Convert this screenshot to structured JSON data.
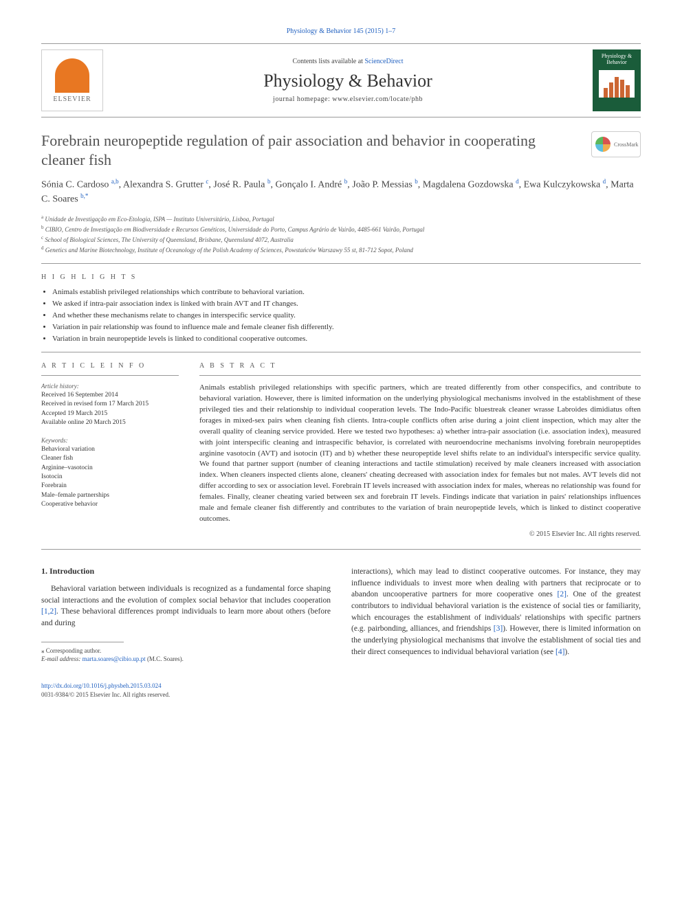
{
  "citation": {
    "journal_short": "Physiology & Behavior",
    "volume_pages": "145 (2015) 1–7"
  },
  "header": {
    "contents_prefix": "Contents lists available at ",
    "contents_link": "ScienceDirect",
    "journal_title": "Physiology & Behavior",
    "homepage_prefix": "journal homepage: ",
    "homepage": "www.elsevier.com/locate/phb",
    "publisher": "ELSEVIER",
    "cover_title": "Physiology & Behavior",
    "cover_bar_heights": [
      14,
      22,
      30,
      26,
      18
    ],
    "cover_bar_color": "#cc6633"
  },
  "crossmark": "CrossMark",
  "article": {
    "title": "Forebrain neuropeptide regulation of pair association and behavior in cooperating cleaner fish",
    "authors_html": "Sónia C. Cardoso <sup>a,b</sup>, Alexandra S. Grutter <sup>c</sup>, José R. Paula <sup>b</sup>, Gonçalo I. André <sup>b</sup>, João P. Messias <sup>b</sup>, Magdalena Gozdowska <sup>d</sup>, Ewa Kulczykowska <sup>d</sup>, Marta C. Soares <sup>b,*</sup>",
    "affiliations": [
      "a Unidade de Investigação em Eco-Etologia, ISPA — Instituto Universitário, Lisboa, Portugal",
      "b CIBIO, Centro de Investigação em Biodiversidade e Recursos Genéticos, Universidade do Porto, Campus Agrário de Vairão, 4485-661 Vairão, Portugal",
      "c School of Biological Sciences, The University of Queensland, Brisbane, Queensland 4072, Australia",
      "d Genetics and Marine Biotechnology, Institute of Oceanology of the Polish Academy of Sciences, Powstańców Warszawy 55 st, 81-712 Sopot, Poland"
    ]
  },
  "highlights": {
    "label": "H I G H L I G H T S",
    "items": [
      "Animals establish privileged relationships which contribute to behavioral variation.",
      "We asked if intra-pair association index is linked with brain AVT and IT changes.",
      "And whether these mechanisms relate to changes in interspecific service quality.",
      "Variation in pair relationship was found to influence male and female cleaner fish differently.",
      "Variation in brain neuropeptide levels is linked to conditional cooperative outcomes."
    ]
  },
  "info": {
    "label": "A R T I C L E   I N F O",
    "history_heading": "Article history:",
    "history": [
      "Received 16 September 2014",
      "Received in revised form 17 March 2015",
      "Accepted 19 March 2015",
      "Available online 20 March 2015"
    ],
    "keywords_heading": "Keywords:",
    "keywords": [
      "Behavioral variation",
      "Cleaner fish",
      "Arginine–vasotocin",
      "Isotocin",
      "Forebrain",
      "Male–female partnerships",
      "Cooperative behavior"
    ]
  },
  "abstract": {
    "label": "A B S T R A C T",
    "text": "Animals establish privileged relationships with specific partners, which are treated differently from other conspecifics, and contribute to behavioral variation. However, there is limited information on the underlying physiological mechanisms involved in the establishment of these privileged ties and their relationship to individual cooperation levels. The Indo-Pacific bluestreak cleaner wrasse Labroides dimidiatus often forages in mixed-sex pairs when cleaning fish clients. Intra-couple conflicts often arise during a joint client inspection, which may alter the overall quality of cleaning service provided. Here we tested two hypotheses: a) whether intra-pair association (i.e. association index), measured with joint interspecific cleaning and intraspecific behavior, is correlated with neuroendocrine mechanisms involving forebrain neuropeptides arginine vasotocin (AVT) and isotocin (IT) and b) whether these neuropeptide level shifts relate to an individual's interspecific service quality. We found that partner support (number of cleaning interactions and tactile stimulation) received by male cleaners increased with association index. When cleaners inspected clients alone, cleaners' cheating decreased with association index for females but not males. AVT levels did not differ according to sex or association level. Forebrain IT levels increased with association index for males, whereas no relationship was found for females. Finally, cleaner cheating varied between sex and forebrain IT levels. Findings indicate that variation in pairs' relationships influences male and female cleaner fish differently and contributes to the variation of brain neuropeptide levels, which is linked to distinct cooperative outcomes.",
    "copyright": "© 2015 Elsevier Inc. All rights reserved."
  },
  "intro": {
    "heading": "1. Introduction",
    "left_paragraph": "Behavioral variation between individuals is recognized as a fundamental force shaping social interactions and the evolution of complex social behavior that includes cooperation [1,2]. These behavioral differences prompt individuals to learn more about others (before and during",
    "right_paragraph": "interactions), which may lead to distinct cooperative outcomes. For instance, they may influence individuals to invest more when dealing with partners that reciprocate or to abandon uncooperative partners for more cooperative ones [2]. One of the greatest contributors to individual behavioral variation is the existence of social ties or familiarity, which encourages the establishment of individuals' relationships with specific partners (e.g. pairbonding, alliances, and friendships [3]). However, there is limited information on the underlying physiological mechanisms that involve the establishment of social ties and their direct consequences to individual behavioral variation (see [4])."
  },
  "footnote": {
    "corresponding": "⁎  Corresponding author.",
    "email_label": "E-mail address: ",
    "email": "marta.soares@cibio.up.pt",
    "email_suffix": " (M.C. Soares)."
  },
  "footer": {
    "doi": "http://dx.doi.org/10.1016/j.physbeh.2015.03.024",
    "issn_line": "0031-9384/© 2015 Elsevier Inc. All rights reserved."
  },
  "colors": {
    "link": "#2060c0",
    "text": "#333333",
    "rule": "#999999",
    "cover_bg": "#1a5c3a",
    "elsevier_orange": "#e87722"
  },
  "typography": {
    "body_fontsize_pt": 11,
    "title_fontsize_pt": 22,
    "journal_title_fontsize_pt": 26,
    "small_fontsize_pt": 9
  }
}
